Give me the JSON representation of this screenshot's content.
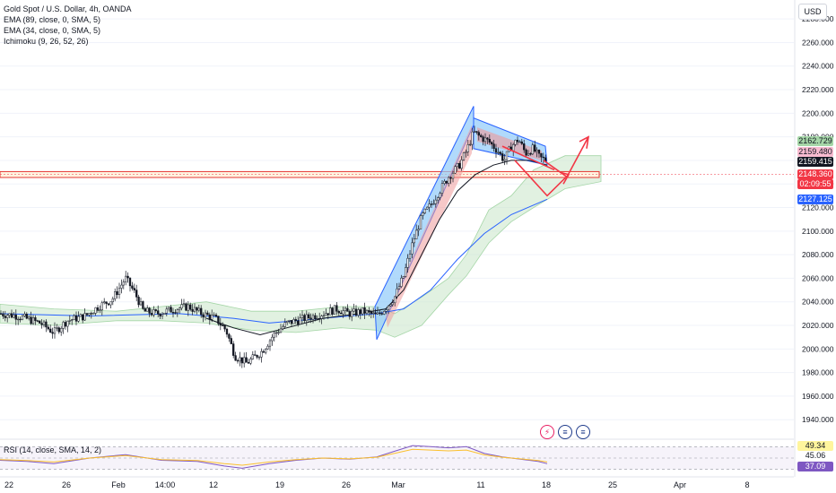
{
  "legend": {
    "symbol": "Gold Spot / U.S. Dollar, 4h, OANDA",
    "ema89": "EMA (89, close, 0, SMA, 5)",
    "ema34": "EMA (34, close, 0, SMA, 5)",
    "ichimoku": "Ichimoku (9, 26, 52, 26)",
    "rsi": "RSI (14, close, SMA, 14, 2)"
  },
  "currency": "USD",
  "price_tags": [
    {
      "text": "2162.729",
      "bg": "#a5d6a7",
      "fg": "#131722"
    },
    {
      "text": "2159.480",
      "bg": "#f8bbd0",
      "fg": "#131722"
    },
    {
      "text": "2159.415",
      "bg": "#131722",
      "fg": "#ffffff"
    },
    {
      "text": "2148.360",
      "bg": "#f23645",
      "fg": "#ffffff"
    },
    {
      "text": "02:09:55",
      "bg": "#f23645",
      "fg": "#ffffff"
    },
    {
      "text": "2127.125",
      "bg": "#2962ff",
      "fg": "#ffffff"
    }
  ],
  "rsi_tags": [
    {
      "text": "49.34",
      "bg": "#fff59d",
      "fg": "#131722"
    },
    {
      "text": "45.06",
      "bg": "#ffffff",
      "fg": "#131722"
    },
    {
      "text": "37.09",
      "bg": "#7e57c2",
      "fg": "#ffffff"
    }
  ],
  "event_icons": [
    {
      "name": "lightning-icon",
      "glyph": "⚡",
      "color": "#e91e63"
    },
    {
      "name": "us-flag-icon",
      "glyph": "≡",
      "color": "#1e3a8a"
    },
    {
      "name": "us-flag-icon-2",
      "glyph": "≡",
      "color": "#1e3a8a"
    }
  ],
  "chart_data": {
    "type": "candlestick",
    "title": "Gold Spot / U.S. Dollar, 4h, OANDA",
    "y_ticks": [
      2280,
      2260,
      2240,
      2220,
      2200,
      2180,
      2160,
      2140,
      2120,
      2100,
      2080,
      2060,
      2040,
      2020,
      2000,
      1980,
      1960,
      1940
    ],
    "ylim": [
      1928,
      2290
    ],
    "x_tick_labels": [
      "22",
      "26",
      "Feb",
      "14:00",
      "12",
      "19",
      "26",
      "Mar",
      "11",
      "18",
      "25",
      "Apr",
      "8"
    ],
    "price_anchors": [
      [
        0,
        2030
      ],
      [
        20,
        2028
      ],
      [
        45,
        2022
      ],
      [
        60,
        2014
      ],
      [
        75,
        2024
      ],
      [
        95,
        2028
      ],
      [
        110,
        2036
      ],
      [
        125,
        2042
      ],
      [
        140,
        2060
      ],
      [
        150,
        2048
      ],
      [
        160,
        2032
      ],
      [
        175,
        2030
      ],
      [
        195,
        2034
      ],
      [
        210,
        2036
      ],
      [
        225,
        2030
      ],
      [
        240,
        2026
      ],
      [
        252,
        2016
      ],
      [
        262,
        1994
      ],
      [
        275,
        1988
      ],
      [
        292,
        1998
      ],
      [
        305,
        2012
      ],
      [
        320,
        2022
      ],
      [
        340,
        2026
      ],
      [
        360,
        2030
      ],
      [
        375,
        2034
      ],
      [
        390,
        2030
      ],
      [
        405,
        2032
      ],
      [
        420,
        2028
      ],
      [
        430,
        2035
      ],
      [
        440,
        2044
      ],
      [
        450,
        2062
      ],
      [
        460,
        2090
      ],
      [
        470,
        2112
      ],
      [
        480,
        2122
      ],
      [
        490,
        2134
      ],
      [
        500,
        2146
      ],
      [
        512,
        2156
      ],
      [
        520,
        2168
      ],
      [
        528,
        2184
      ],
      [
        535,
        2180
      ],
      [
        545,
        2176
      ],
      [
        555,
        2168
      ],
      [
        562,
        2160
      ],
      [
        570,
        2172
      ],
      [
        578,
        2178
      ],
      [
        586,
        2166
      ],
      [
        594,
        2170
      ],
      [
        602,
        2162
      ],
      [
        610,
        2160
      ]
    ],
    "ema34_anchors": [
      [
        230,
        2026
      ],
      [
        260,
        2018
      ],
      [
        290,
        2012
      ],
      [
        320,
        2018
      ],
      [
        360,
        2026
      ],
      [
        400,
        2030
      ],
      [
        430,
        2034
      ],
      [
        450,
        2050
      ],
      [
        470,
        2080
      ],
      [
        490,
        2110
      ],
      [
        510,
        2134
      ],
      [
        530,
        2148
      ],
      [
        550,
        2156
      ],
      [
        570,
        2160
      ],
      [
        590,
        2160
      ],
      [
        610,
        2156
      ]
    ],
    "ema89_anchors": [
      [
        0,
        2030
      ],
      [
        100,
        2028
      ],
      [
        200,
        2030
      ],
      [
        260,
        2026
      ],
      [
        300,
        2022
      ],
      [
        360,
        2026
      ],
      [
        420,
        2030
      ],
      [
        450,
        2034
      ],
      [
        480,
        2050
      ],
      [
        510,
        2076
      ],
      [
        540,
        2098
      ],
      [
        570,
        2114
      ],
      [
        610,
        2127
      ]
    ],
    "cloud_upper_anchors": [
      [
        0,
        2038
      ],
      [
        60,
        2034
      ],
      [
        130,
        2032
      ],
      [
        180,
        2036
      ],
      [
        230,
        2040
      ],
      [
        280,
        2032
      ],
      [
        330,
        2032
      ],
      [
        380,
        2036
      ],
      [
        420,
        2036
      ],
      [
        440,
        2030
      ],
      [
        470,
        2044
      ],
      [
        500,
        2060
      ],
      [
        520,
        2080
      ],
      [
        545,
        2118
      ],
      [
        570,
        2130
      ],
      [
        595,
        2152
      ],
      [
        630,
        2164
      ],
      [
        670,
        2164
      ]
    ],
    "cloud_lower_anchors": [
      [
        0,
        2022
      ],
      [
        60,
        2020
      ],
      [
        130,
        2024
      ],
      [
        180,
        2024
      ],
      [
        230,
        2022
      ],
      [
        280,
        2016
      ],
      [
        330,
        2014
      ],
      [
        380,
        2018
      ],
      [
        420,
        2016
      ],
      [
        440,
        2010
      ],
      [
        470,
        2020
      ],
      [
        500,
        2046
      ],
      [
        520,
        2062
      ],
      [
        545,
        2090
      ],
      [
        570,
        2108
      ],
      [
        595,
        2120
      ],
      [
        630,
        2136
      ],
      [
        670,
        2142
      ]
    ],
    "horizontal_zone": [
      2145.5,
      2150.5
    ],
    "rsi": {
      "levels": [
        70,
        50,
        30
      ],
      "ylim": [
        20,
        80
      ],
      "anchors": [
        [
          0,
          46
        ],
        [
          30,
          44
        ],
        [
          60,
          40
        ],
        [
          100,
          50
        ],
        [
          140,
          56
        ],
        [
          180,
          46
        ],
        [
          220,
          44
        ],
        [
          250,
          36
        ],
        [
          270,
          32
        ],
        [
          300,
          40
        ],
        [
          330,
          46
        ],
        [
          360,
          50
        ],
        [
          390,
          48
        ],
        [
          420,
          52
        ],
        [
          440,
          62
        ],
        [
          460,
          72
        ],
        [
          480,
          70
        ],
        [
          500,
          68
        ],
        [
          520,
          70
        ],
        [
          540,
          58
        ],
        [
          560,
          52
        ],
        [
          580,
          48
        ],
        [
          600,
          44
        ],
        [
          610,
          40
        ]
      ]
    }
  }
}
